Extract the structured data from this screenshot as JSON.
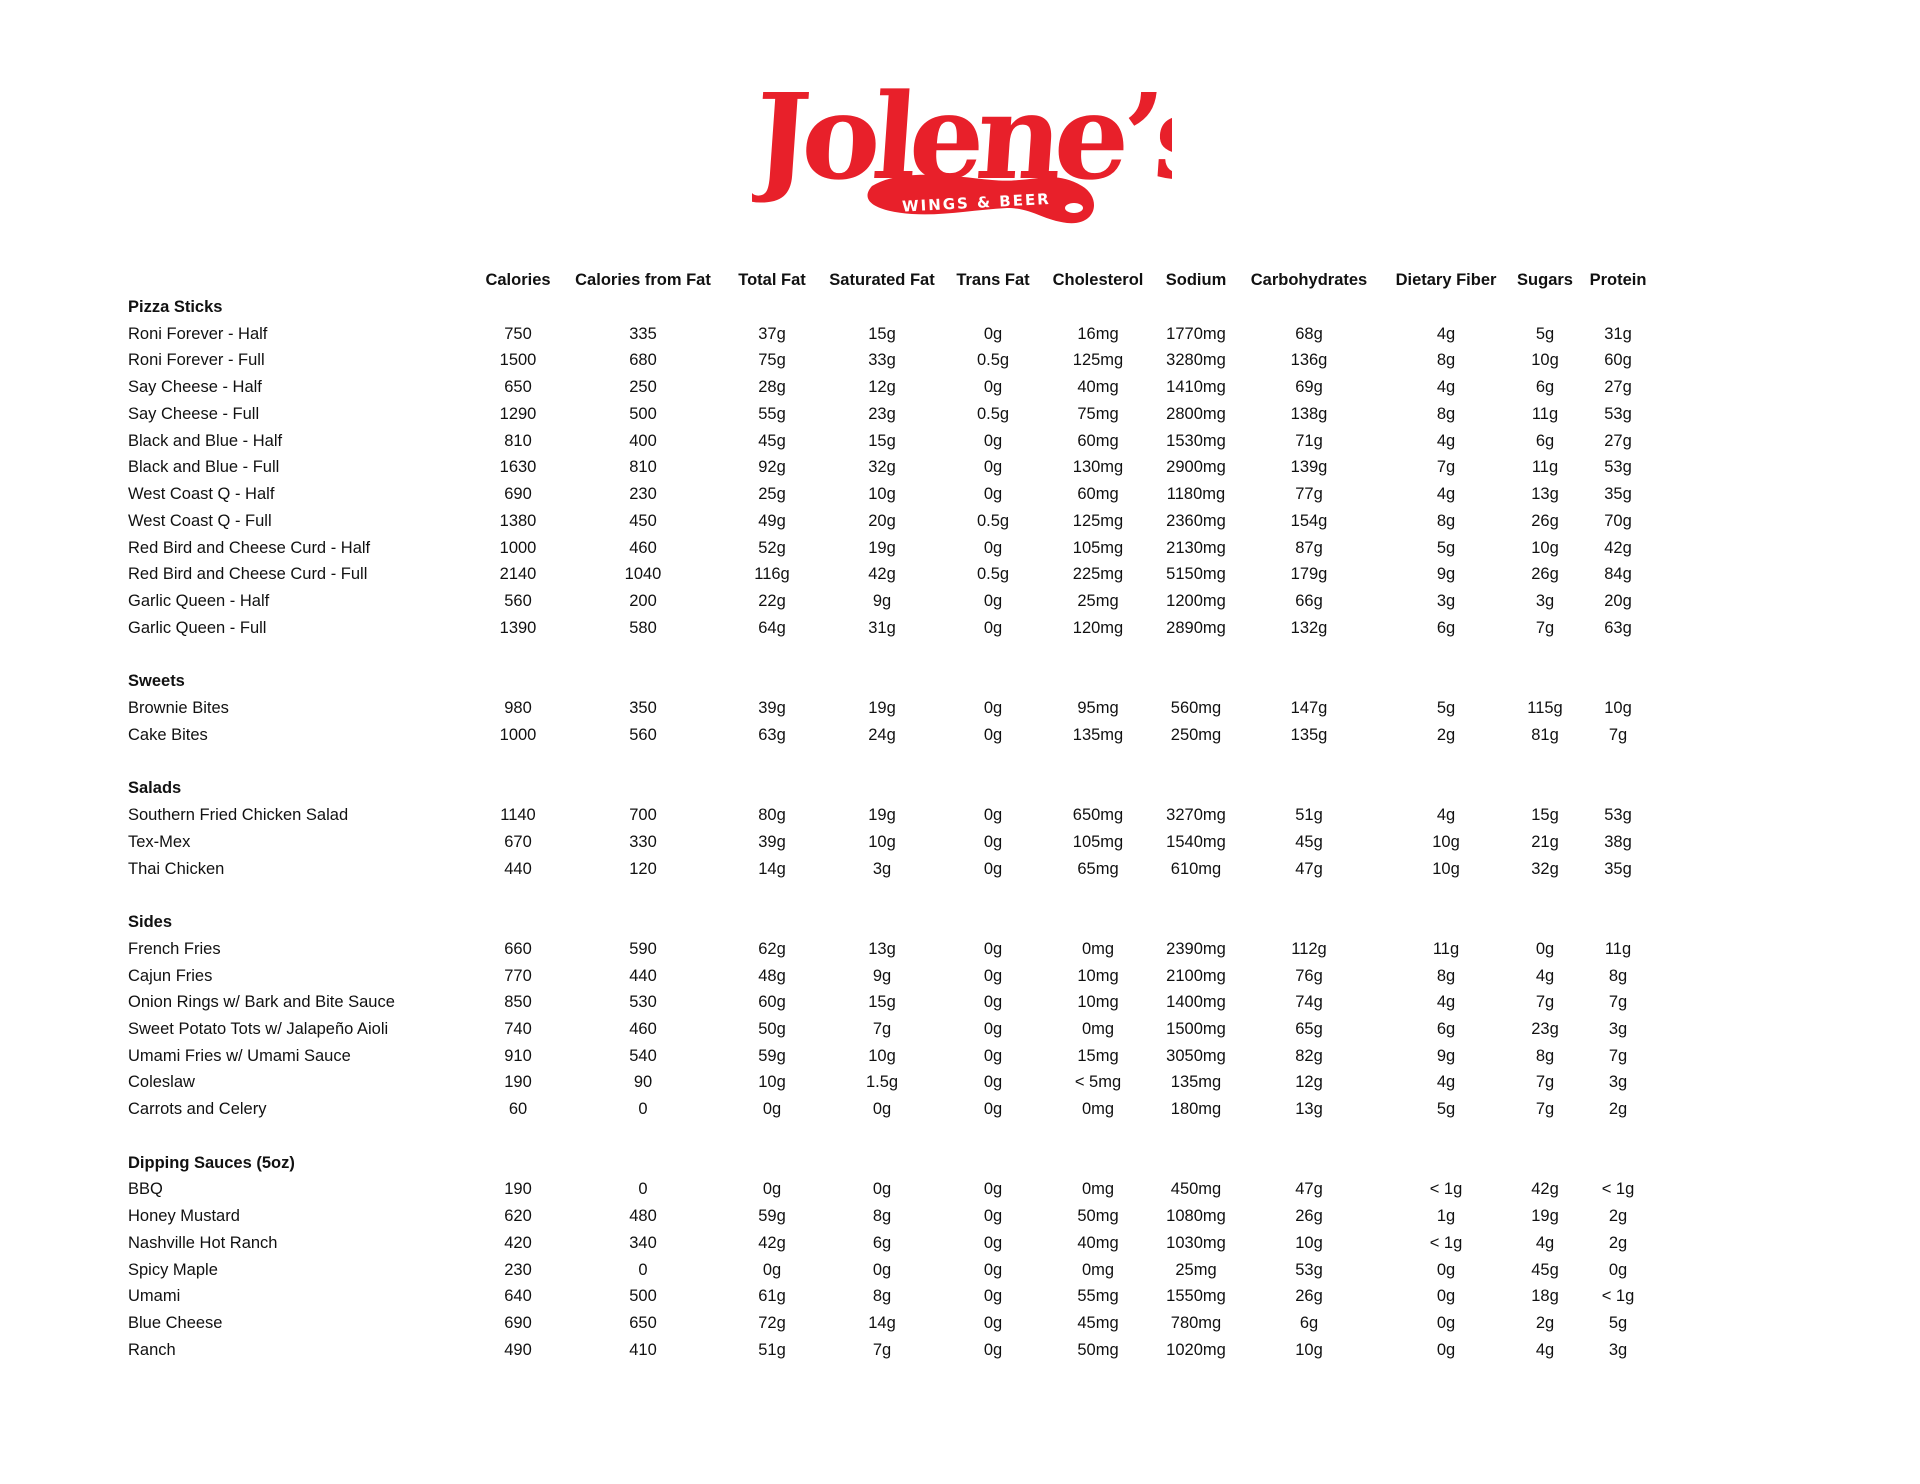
{
  "logo": {
    "name": "Jolene's",
    "tagline": "WINGS & BEER",
    "color": "#e8202a"
  },
  "columns": [
    "Calories",
    "Calories from Fat",
    "Total Fat",
    "Saturated Fat",
    "Trans Fat",
    "Cholesterol",
    "Sodium",
    "Carbohydrates",
    "Dietary Fiber",
    "Sugars",
    "Protein"
  ],
  "sections": [
    {
      "title": "Pizza Sticks",
      "items": [
        {
          "name": "Roni Forever - Half",
          "values": [
            "750",
            "335",
            "37g",
            "15g",
            "0g",
            "16mg",
            "1770mg",
            "68g",
            "4g",
            "5g",
            "31g"
          ]
        },
        {
          "name": "Roni Forever - Full",
          "values": [
            "1500",
            "680",
            "75g",
            "33g",
            "0.5g",
            "125mg",
            "3280mg",
            "136g",
            "8g",
            "10g",
            "60g"
          ]
        },
        {
          "name": "Say Cheese - Half",
          "values": [
            "650",
            "250",
            "28g",
            "12g",
            "0g",
            "40mg",
            "1410mg",
            "69g",
            "4g",
            "6g",
            "27g"
          ]
        },
        {
          "name": "Say Cheese - Full",
          "values": [
            "1290",
            "500",
            "55g",
            "23g",
            "0.5g",
            "75mg",
            "2800mg",
            "138g",
            "8g",
            "11g",
            "53g"
          ]
        },
        {
          "name": "Black and Blue - Half",
          "values": [
            "810",
            "400",
            "45g",
            "15g",
            "0g",
            "60mg",
            "1530mg",
            "71g",
            "4g",
            "6g",
            "27g"
          ]
        },
        {
          "name": "Black and Blue - Full",
          "values": [
            "1630",
            "810",
            "92g",
            "32g",
            "0g",
            "130mg",
            "2900mg",
            "139g",
            "7g",
            "11g",
            "53g"
          ]
        },
        {
          "name": "West Coast Q - Half",
          "values": [
            "690",
            "230",
            "25g",
            "10g",
            "0g",
            "60mg",
            "1180mg",
            "77g",
            "4g",
            "13g",
            "35g"
          ]
        },
        {
          "name": "West Coast Q - Full",
          "values": [
            "1380",
            "450",
            "49g",
            "20g",
            "0.5g",
            "125mg",
            "2360mg",
            "154g",
            "8g",
            "26g",
            "70g"
          ]
        },
        {
          "name": "Red Bird and Cheese Curd - Half",
          "values": [
            "1000",
            "460",
            "52g",
            "19g",
            "0g",
            "105mg",
            "2130mg",
            "87g",
            "5g",
            "10g",
            "42g"
          ]
        },
        {
          "name": "Red Bird and Cheese Curd - Full",
          "values": [
            "2140",
            "1040",
            "116g",
            "42g",
            "0.5g",
            "225mg",
            "5150mg",
            "179g",
            "9g",
            "26g",
            "84g"
          ]
        },
        {
          "name": "Garlic Queen - Half",
          "values": [
            "560",
            "200",
            "22g",
            "9g",
            "0g",
            "25mg",
            "1200mg",
            "66g",
            "3g",
            "3g",
            "20g"
          ]
        },
        {
          "name": "Garlic Queen - Full",
          "values": [
            "1390",
            "580",
            "64g",
            "31g",
            "0g",
            "120mg",
            "2890mg",
            "132g",
            "6g",
            "7g",
            "63g"
          ]
        }
      ]
    },
    {
      "title": "Sweets",
      "items": [
        {
          "name": "Brownie Bites",
          "values": [
            "980",
            "350",
            "39g",
            "19g",
            "0g",
            "95mg",
            "560mg",
            "147g",
            "5g",
            "115g",
            "10g"
          ]
        },
        {
          "name": "Cake Bites",
          "values": [
            "1000",
            "560",
            "63g",
            "24g",
            "0g",
            "135mg",
            "250mg",
            "135g",
            "2g",
            "81g",
            "7g"
          ]
        }
      ]
    },
    {
      "title": "Salads",
      "items": [
        {
          "name": "Southern Fried Chicken Salad",
          "values": [
            "1140",
            "700",
            "80g",
            "19g",
            "0g",
            "650mg",
            "3270mg",
            "51g",
            "4g",
            "15g",
            "53g"
          ]
        },
        {
          "name": "Tex-Mex",
          "values": [
            "670",
            "330",
            "39g",
            "10g",
            "0g",
            "105mg",
            "1540mg",
            "45g",
            "10g",
            "21g",
            "38g"
          ]
        },
        {
          "name": "Thai Chicken",
          "values": [
            "440",
            "120",
            "14g",
            "3g",
            "0g",
            "65mg",
            "610mg",
            "47g",
            "10g",
            "32g",
            "35g"
          ]
        }
      ]
    },
    {
      "title": "Sides",
      "items": [
        {
          "name": "French Fries",
          "values": [
            "660",
            "590",
            "62g",
            "13g",
            "0g",
            "0mg",
            "2390mg",
            "112g",
            "11g",
            "0g",
            "11g"
          ]
        },
        {
          "name": "Cajun Fries",
          "values": [
            "770",
            "440",
            "48g",
            "9g",
            "0g",
            "10mg",
            "2100mg",
            "76g",
            "8g",
            "4g",
            "8g"
          ]
        },
        {
          "name": "Onion Rings w/ Bark and Bite Sauce",
          "values": [
            "850",
            "530",
            "60g",
            "15g",
            "0g",
            "10mg",
            "1400mg",
            "74g",
            "4g",
            "7g",
            "7g"
          ]
        },
        {
          "name": "Sweet Potato Tots w/ Jalapeño Aioli",
          "values": [
            "740",
            "460",
            "50g",
            "7g",
            "0g",
            "0mg",
            "1500mg",
            "65g",
            "6g",
            "23g",
            "3g"
          ]
        },
        {
          "name": "Umami Fries w/ Umami Sauce",
          "values": [
            "910",
            "540",
            "59g",
            "10g",
            "0g",
            "15mg",
            "3050mg",
            "82g",
            "9g",
            "8g",
            "7g"
          ]
        },
        {
          "name": "Coleslaw",
          "values": [
            "190",
            "90",
            "10g",
            "1.5g",
            "0g",
            "< 5mg",
            "135mg",
            "12g",
            "4g",
            "7g",
            "3g"
          ]
        },
        {
          "name": "Carrots and Celery",
          "values": [
            "60",
            "0",
            "0g",
            "0g",
            "0g",
            "0mg",
            "180mg",
            "13g",
            "5g",
            "7g",
            "2g"
          ]
        }
      ]
    },
    {
      "title": "Dipping Sauces (5oz)",
      "items": [
        {
          "name": "BBQ",
          "values": [
            "190",
            "0",
            "0g",
            "0g",
            "0g",
            "0mg",
            "450mg",
            "47g",
            "< 1g",
            "42g",
            "< 1g"
          ]
        },
        {
          "name": "Honey Mustard",
          "values": [
            "620",
            "480",
            "59g",
            "8g",
            "0g",
            "50mg",
            "1080mg",
            "26g",
            "1g",
            "19g",
            "2g"
          ]
        },
        {
          "name": "Nashville Hot Ranch",
          "values": [
            "420",
            "340",
            "42g",
            "6g",
            "0g",
            "40mg",
            "1030mg",
            "10g",
            "< 1g",
            "4g",
            "2g"
          ]
        },
        {
          "name": "Spicy Maple",
          "values": [
            "230",
            "0",
            "0g",
            "0g",
            "0g",
            "0mg",
            "25mg",
            "53g",
            "0g",
            "45g",
            "0g"
          ]
        },
        {
          "name": "Umami",
          "values": [
            "640",
            "500",
            "61g",
            "8g",
            "0g",
            "55mg",
            "1550mg",
            "26g",
            "0g",
            "18g",
            "< 1g"
          ]
        },
        {
          "name": "Blue Cheese",
          "values": [
            "690",
            "650",
            "72g",
            "14g",
            "0g",
            "45mg",
            "780mg",
            "6g",
            "0g",
            "2g",
            "5g"
          ]
        },
        {
          "name": "Ranch",
          "values": [
            "490",
            "410",
            "51g",
            "7g",
            "0g",
            "50mg",
            "1020mg",
            "10g",
            "0g",
            "4g",
            "3g"
          ]
        }
      ]
    }
  ]
}
